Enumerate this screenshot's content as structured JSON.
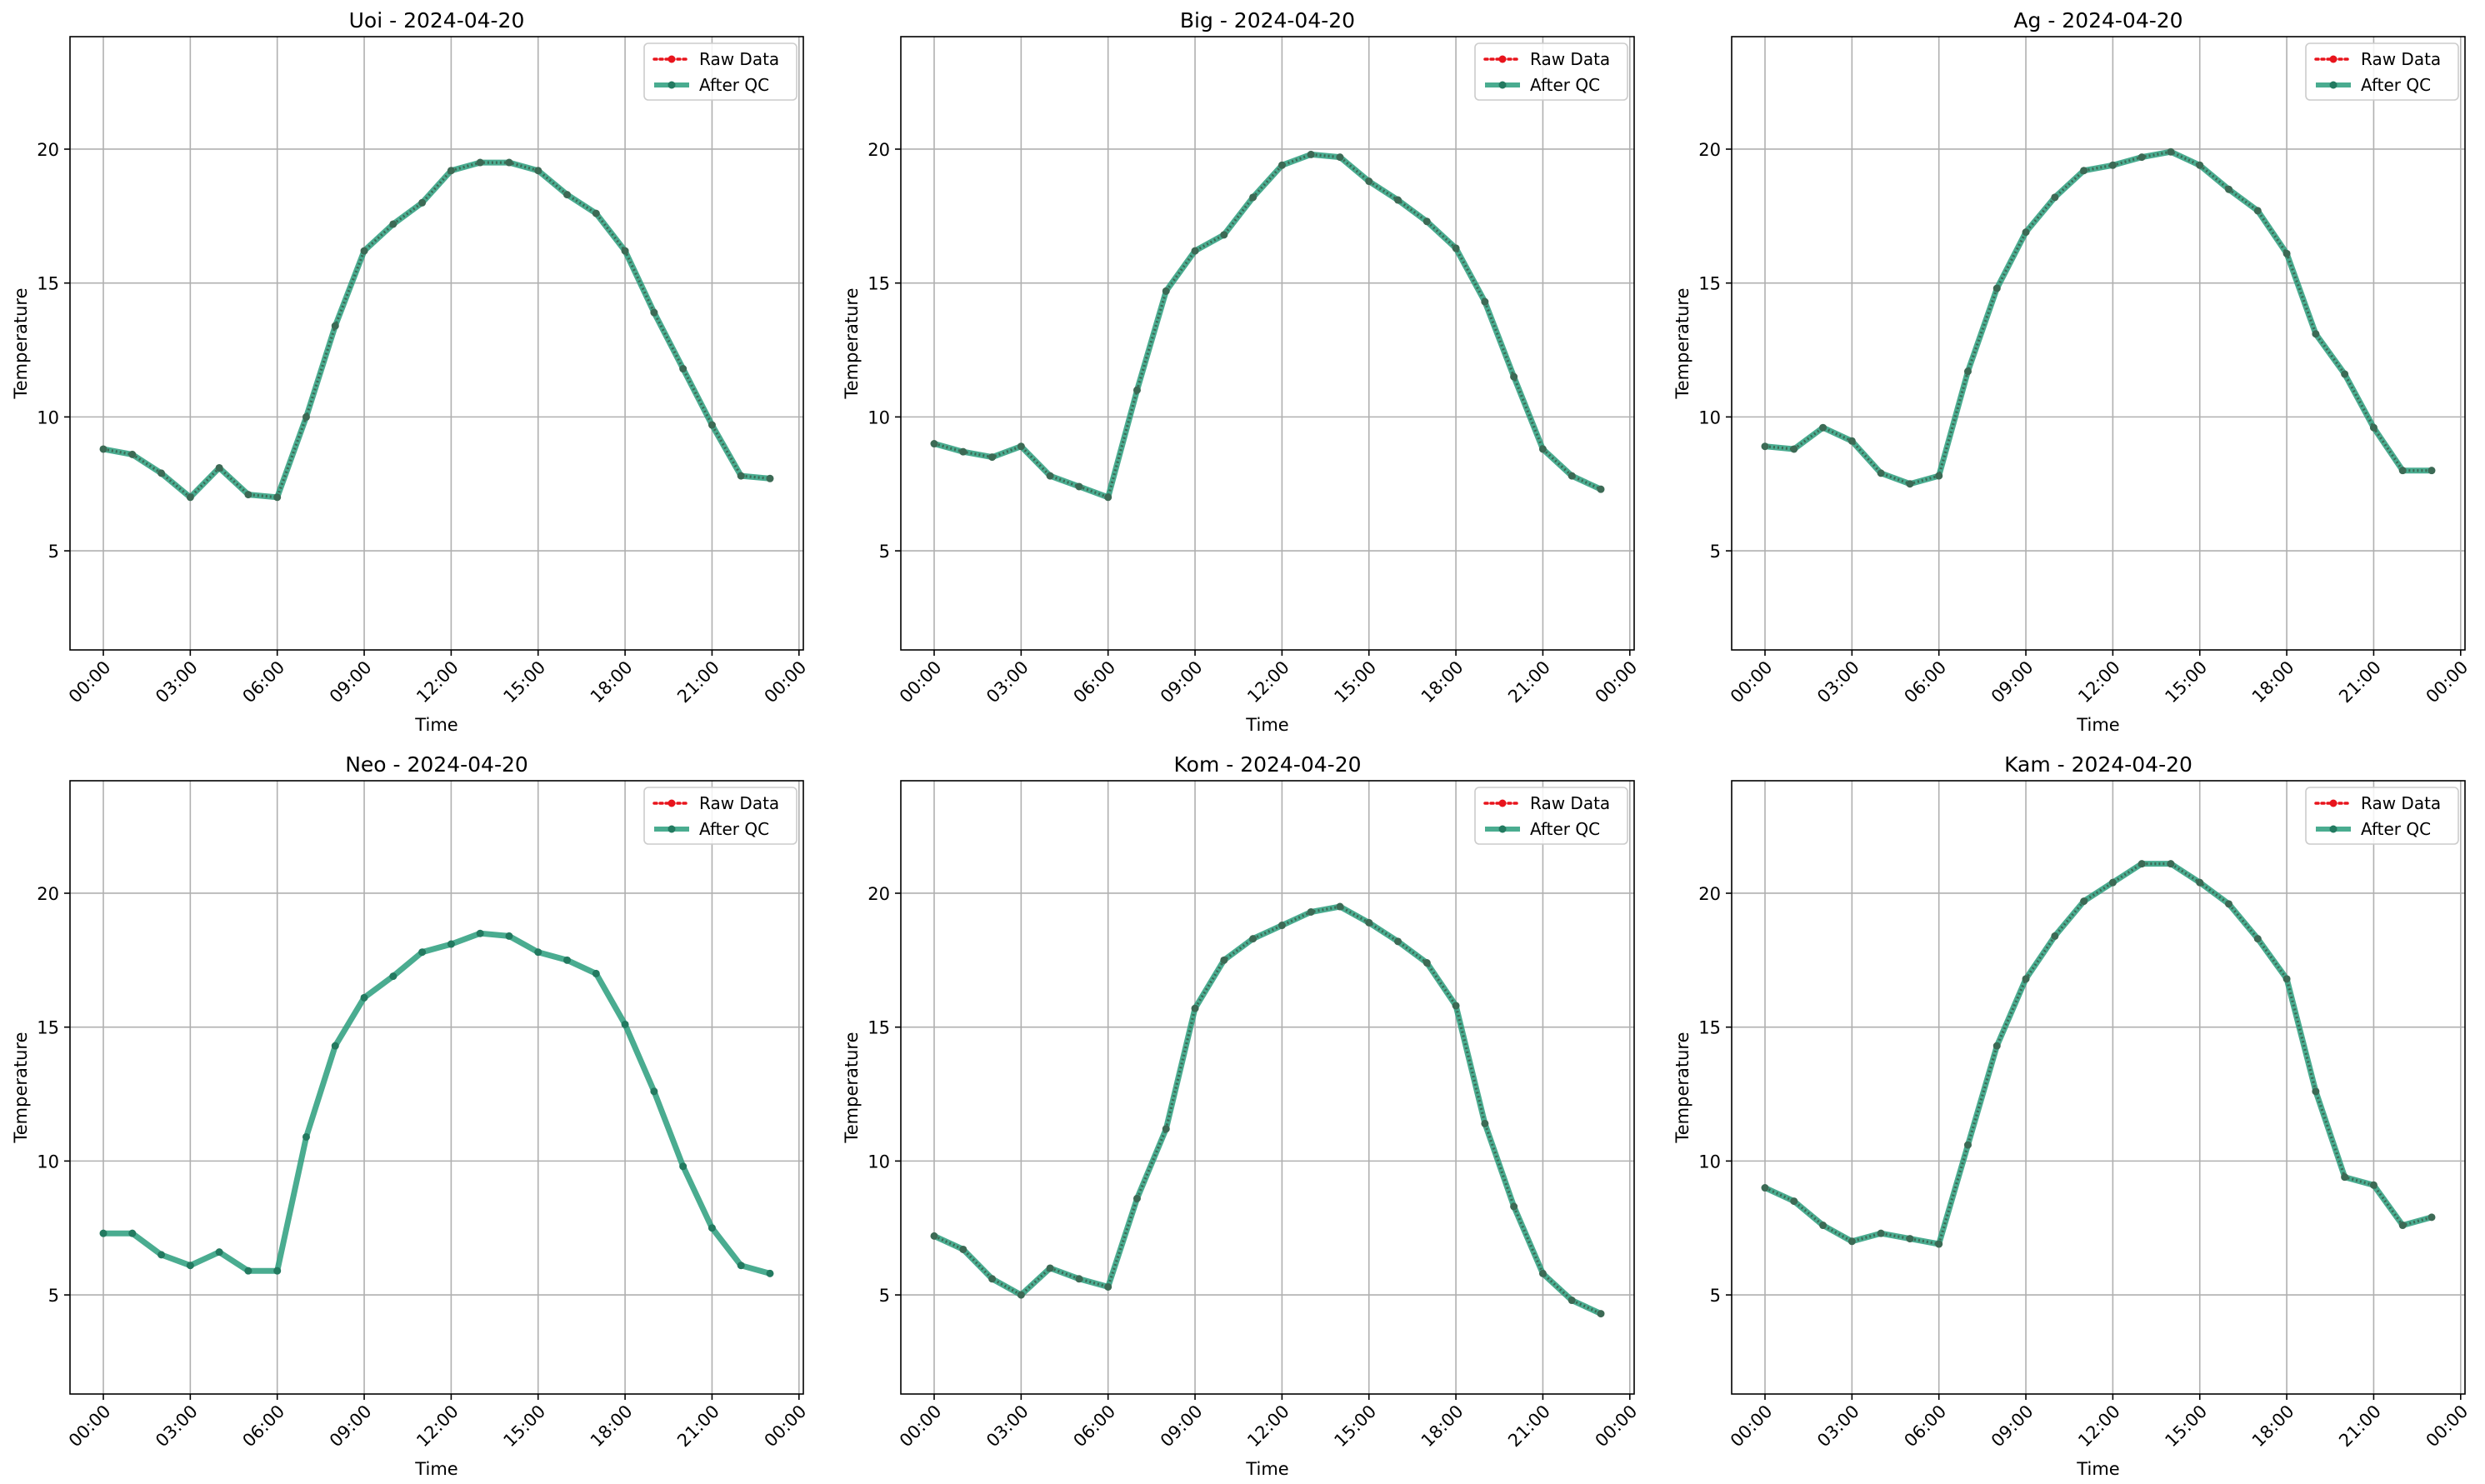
{
  "chart_data": [
    {
      "type": "line",
      "title": "Uoi - 2024-04-20",
      "xlabel": "Time",
      "ylabel": "Temperature",
      "x_ticks": [
        "00:00",
        "03:00",
        "06:00",
        "09:00",
        "12:00",
        "15:00",
        "18:00",
        "21:00",
        "00:00"
      ],
      "y_ticks": [
        5,
        10,
        15,
        20
      ],
      "ylim": [
        1.3,
        24.2
      ],
      "x_hours_range": [
        -1.15,
        24.15
      ],
      "grid": true,
      "legend_position": "top-right",
      "x_hours": [
        0,
        1,
        2,
        3,
        4,
        5,
        6,
        7,
        8,
        9,
        10,
        11,
        12,
        13,
        14,
        15,
        16,
        17,
        18,
        19,
        20,
        21,
        22,
        23
      ],
      "series": [
        {
          "name": "Raw Data",
          "style": "dotted-markers",
          "values": [
            8.8,
            8.6,
            7.9,
            7.0,
            8.1,
            7.1,
            7.0,
            10.0,
            13.4,
            16.2,
            17.2,
            18.0,
            19.2,
            19.5,
            19.5,
            19.2,
            18.3,
            17.6,
            16.2,
            13.9,
            11.8,
            9.7,
            7.8,
            7.7
          ]
        },
        {
          "name": "After QC",
          "style": "solid-markers",
          "values": [
            8.8,
            8.6,
            7.9,
            7.0,
            8.1,
            7.1,
            7.0,
            10.0,
            13.4,
            16.2,
            17.2,
            18.0,
            19.2,
            19.5,
            19.5,
            19.2,
            18.3,
            17.6,
            16.2,
            13.9,
            11.8,
            9.7,
            7.8,
            7.7
          ]
        }
      ]
    },
    {
      "type": "line",
      "title": "Big - 2024-04-20",
      "xlabel": "Time",
      "ylabel": "Temperature",
      "x_ticks": [
        "00:00",
        "03:00",
        "06:00",
        "09:00",
        "12:00",
        "15:00",
        "18:00",
        "21:00",
        "00:00"
      ],
      "y_ticks": [
        5,
        10,
        15,
        20
      ],
      "ylim": [
        1.3,
        24.2
      ],
      "x_hours_range": [
        -1.15,
        24.15
      ],
      "grid": true,
      "legend_position": "top-right",
      "x_hours": [
        0,
        1,
        2,
        3,
        4,
        5,
        6,
        7,
        8,
        9,
        10,
        11,
        12,
        13,
        14,
        15,
        16,
        17,
        18,
        19,
        20,
        21,
        22,
        23
      ],
      "series": [
        {
          "name": "Raw Data",
          "style": "dotted-markers",
          "values": [
            9.0,
            8.7,
            8.5,
            8.9,
            7.8,
            7.4,
            7.0,
            11.0,
            14.7,
            16.2,
            16.8,
            18.2,
            19.4,
            19.8,
            19.7,
            18.8,
            18.1,
            17.3,
            16.3,
            14.3,
            11.5,
            8.8,
            7.8,
            7.3
          ]
        },
        {
          "name": "After QC",
          "style": "solid-markers",
          "values": [
            9.0,
            8.7,
            8.5,
            8.9,
            7.8,
            7.4,
            7.0,
            11.0,
            14.7,
            16.2,
            16.8,
            18.2,
            19.4,
            19.8,
            19.7,
            18.8,
            18.1,
            17.3,
            16.3,
            14.3,
            11.5,
            8.8,
            7.8,
            7.3
          ]
        }
      ]
    },
    {
      "type": "line",
      "title": "Ag - 2024-04-20",
      "xlabel": "Time",
      "ylabel": "Temperature",
      "x_ticks": [
        "00:00",
        "03:00",
        "06:00",
        "09:00",
        "12:00",
        "15:00",
        "18:00",
        "21:00",
        "00:00"
      ],
      "y_ticks": [
        5,
        10,
        15,
        20
      ],
      "ylim": [
        1.3,
        24.2
      ],
      "x_hours_range": [
        -1.15,
        24.15
      ],
      "grid": true,
      "legend_position": "top-right",
      "x_hours": [
        0,
        1,
        2,
        3,
        4,
        5,
        6,
        7,
        8,
        9,
        10,
        11,
        12,
        13,
        14,
        15,
        16,
        17,
        18,
        19,
        20,
        21,
        22,
        23
      ],
      "series": [
        {
          "name": "Raw Data",
          "style": "dotted-markers",
          "values": [
            8.9,
            8.8,
            9.6,
            9.1,
            7.9,
            7.5,
            7.8,
            11.7,
            14.8,
            16.9,
            18.2,
            19.2,
            19.4,
            19.7,
            19.9,
            19.4,
            18.5,
            17.7,
            16.1,
            13.1,
            11.6,
            9.6,
            8.0,
            8.0
          ]
        },
        {
          "name": "After QC",
          "style": "solid-markers",
          "values": [
            8.9,
            8.8,
            9.6,
            9.1,
            7.9,
            7.5,
            7.8,
            11.7,
            14.8,
            16.9,
            18.2,
            19.2,
            19.4,
            19.7,
            19.9,
            19.4,
            18.5,
            17.7,
            16.1,
            13.1,
            11.6,
            9.6,
            8.0,
            8.0
          ]
        }
      ]
    },
    {
      "type": "line",
      "title": "Neo - 2024-04-20",
      "xlabel": "Time",
      "ylabel": "Temperature",
      "x_ticks": [
        "00:00",
        "03:00",
        "06:00",
        "09:00",
        "12:00",
        "15:00",
        "18:00",
        "21:00",
        "00:00"
      ],
      "y_ticks": [
        5,
        10,
        15,
        20
      ],
      "ylim": [
        1.3,
        24.2
      ],
      "x_hours_range": [
        -1.15,
        24.15
      ],
      "grid": true,
      "legend_position": "top-right",
      "x_hours": [
        0,
        1,
        2,
        3,
        4,
        5,
        6,
        7,
        8,
        9,
        10,
        11,
        12,
        13,
        14,
        15,
        16,
        17,
        18,
        19,
        20,
        21,
        22,
        23
      ],
      "series": [
        {
          "name": "Raw Data",
          "style": "dotted-markers",
          "values": []
        },
        {
          "name": "After QC",
          "style": "solid-markers",
          "values": [
            7.3,
            7.3,
            6.5,
            6.1,
            6.6,
            5.9,
            5.9,
            10.9,
            14.3,
            16.1,
            16.9,
            17.8,
            18.1,
            18.5,
            18.4,
            17.8,
            17.5,
            17.0,
            15.1,
            12.6,
            9.8,
            7.5,
            6.1,
            5.8
          ]
        }
      ]
    },
    {
      "type": "line",
      "title": "Kom - 2024-04-20",
      "xlabel": "Time",
      "ylabel": "Temperature",
      "x_ticks": [
        "00:00",
        "03:00",
        "06:00",
        "09:00",
        "12:00",
        "15:00",
        "18:00",
        "21:00",
        "00:00"
      ],
      "y_ticks": [
        5,
        10,
        15,
        20
      ],
      "ylim": [
        1.3,
        24.2
      ],
      "x_hours_range": [
        -1.15,
        24.15
      ],
      "grid": true,
      "legend_position": "top-right",
      "x_hours": [
        0,
        1,
        2,
        3,
        4,
        5,
        6,
        7,
        8,
        9,
        10,
        11,
        12,
        13,
        14,
        15,
        16,
        17,
        18,
        19,
        20,
        21,
        22,
        23
      ],
      "series": [
        {
          "name": "Raw Data",
          "style": "dotted-markers",
          "values": [
            7.2,
            6.7,
            5.6,
            5.0,
            6.0,
            5.6,
            5.3,
            8.6,
            11.2,
            15.7,
            17.5,
            18.3,
            18.8,
            19.3,
            19.5,
            18.9,
            18.2,
            17.4,
            15.8,
            11.4,
            8.3,
            5.8,
            4.8,
            4.3
          ]
        },
        {
          "name": "After QC",
          "style": "solid-markers",
          "values": [
            7.2,
            6.7,
            5.6,
            5.0,
            6.0,
            5.6,
            5.3,
            8.6,
            11.2,
            15.7,
            17.5,
            18.3,
            18.8,
            19.3,
            19.5,
            18.9,
            18.2,
            17.4,
            15.8,
            11.4,
            8.3,
            5.8,
            4.8,
            4.3
          ]
        }
      ]
    },
    {
      "type": "line",
      "title": "Kam - 2024-04-20",
      "xlabel": "Time",
      "ylabel": "Temperature",
      "x_ticks": [
        "00:00",
        "03:00",
        "06:00",
        "09:00",
        "12:00",
        "15:00",
        "18:00",
        "21:00",
        "00:00"
      ],
      "y_ticks": [
        5,
        10,
        15,
        20
      ],
      "ylim": [
        1.3,
        24.2
      ],
      "x_hours_range": [
        -1.15,
        24.15
      ],
      "grid": true,
      "legend_position": "top-right",
      "x_hours": [
        0,
        1,
        2,
        3,
        4,
        5,
        6,
        7,
        8,
        9,
        10,
        11,
        12,
        13,
        14,
        15,
        16,
        17,
        18,
        19,
        20,
        21,
        22,
        23
      ],
      "series": [
        {
          "name": "Raw Data",
          "style": "dotted-markers",
          "values": [
            9.0,
            8.5,
            7.6,
            7.0,
            7.3,
            7.1,
            6.9,
            10.6,
            14.3,
            16.8,
            18.4,
            19.7,
            20.4,
            21.1,
            21.1,
            20.4,
            19.6,
            18.3,
            16.8,
            12.6,
            9.4,
            9.1,
            7.6,
            7.9
          ]
        },
        {
          "name": "After QC",
          "style": "solid-markers",
          "values": [
            9.0,
            8.5,
            7.6,
            7.0,
            7.3,
            7.1,
            6.9,
            10.6,
            14.3,
            16.8,
            18.4,
            19.7,
            20.4,
            21.1,
            21.1,
            20.4,
            19.6,
            18.3,
            16.8,
            12.6,
            9.4,
            9.1,
            7.6,
            7.9
          ]
        }
      ]
    }
  ],
  "colors": {
    "raw": "#e8141c",
    "after_qc": "#2a9d7c",
    "after_qc_marker": "#237a60",
    "overlay": "#3c6a55",
    "grid": "#b0b0b0",
    "axes": "#000000"
  }
}
